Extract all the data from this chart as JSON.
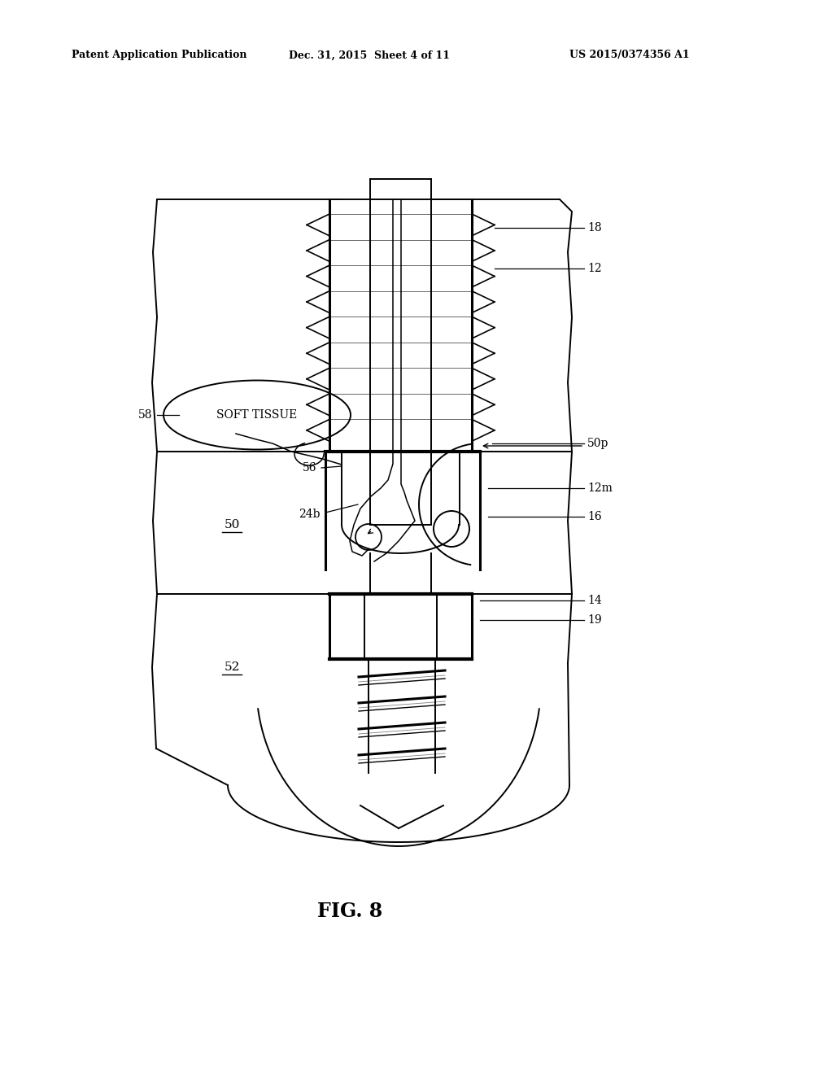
{
  "bg_color": "#ffffff",
  "lc": "#000000",
  "header_left": "Patent Application Publication",
  "header_mid": "Dec. 31, 2015  Sheet 4 of 11",
  "header_right": "US 2015/0374356 A1",
  "fig_caption": "FIG. 8",
  "soft_tissue_label": "SOFT TISSUE",
  "label_50": "50",
  "label_52": "52",
  "figsize": [
    10.24,
    13.2
  ],
  "dpi": 100
}
